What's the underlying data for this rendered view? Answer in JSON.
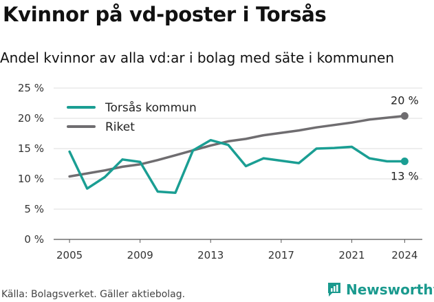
{
  "header": {
    "title": "Kvinnor på vd-poster i Torsås",
    "subtitle": "Andel kvinnor av alla vd:ar i bolag med säte i kommunen"
  },
  "footer": {
    "source": "Källa: Bolagsverket. Gäller aktiebolag.",
    "brand": "Newsworthy"
  },
  "colors": {
    "torsas": "#1a9e93",
    "riket": "#6f6d70",
    "brand": "#1a9a8e"
  },
  "chart_data": {
    "type": "line",
    "x": [
      2005,
      2006,
      2007,
      2008,
      2009,
      2010,
      2011,
      2012,
      2013,
      2014,
      2015,
      2016,
      2017,
      2018,
      2019,
      2020,
      2021,
      2022,
      2023,
      2024
    ],
    "xticks": [
      2005,
      2009,
      2013,
      2017,
      2021,
      2024
    ],
    "yticks": [
      0,
      5,
      10,
      15,
      20,
      25
    ],
    "ytick_labels": [
      "0 %",
      "5 %",
      "10 %",
      "15 %",
      "20 %",
      "25 %"
    ],
    "ylim": [
      0,
      25
    ],
    "xlim": [
      2004.1,
      2025
    ],
    "grid": "horizontal",
    "legend_position": "top-left",
    "series": [
      {
        "name": "Torsås kommun",
        "color": "#1a9e93",
        "values": [
          14.5,
          8.4,
          10.3,
          13.2,
          12.8,
          7.9,
          7.7,
          14.7,
          16.4,
          15.6,
          12.1,
          13.4,
          13.0,
          12.6,
          15.0,
          15.1,
          15.3,
          13.4,
          12.9,
          12.9
        ],
        "end_label": "13 %"
      },
      {
        "name": "Riket",
        "color": "#6f6d70",
        "values": [
          10.4,
          10.9,
          11.4,
          12.0,
          12.4,
          13.1,
          13.9,
          14.7,
          15.5,
          16.2,
          16.6,
          17.2,
          17.6,
          18.0,
          18.5,
          18.9,
          19.3,
          19.8,
          20.1,
          20.4
        ],
        "end_label": "20 %"
      }
    ]
  }
}
